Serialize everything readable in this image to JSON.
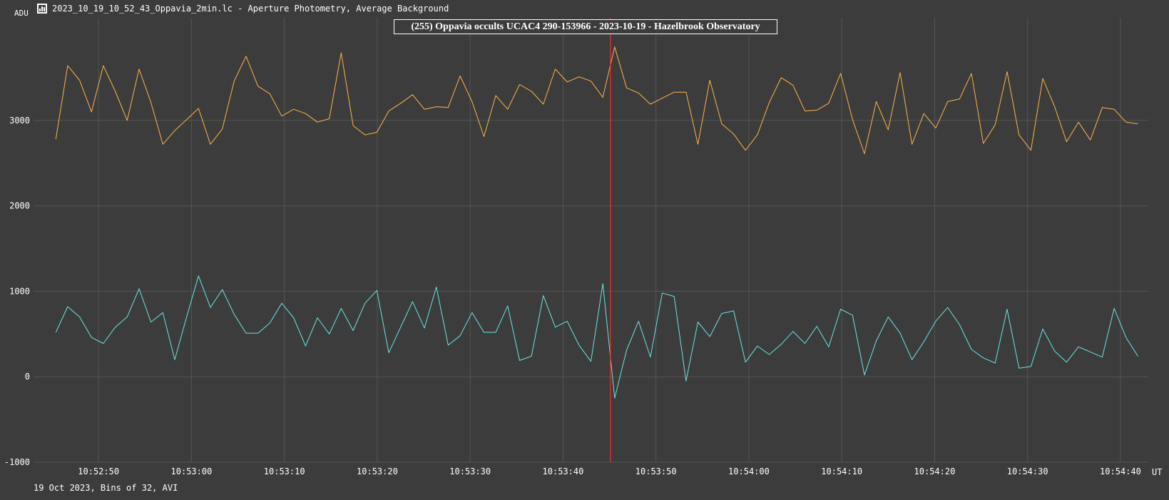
{
  "window": {
    "title": "2023_10_19_10_52_43_Oppavia_2min.lc - Aperture Photometry, Average Background",
    "icon": "lightcurve-chart-icon"
  },
  "chart_data": {
    "type": "line",
    "title": "(255) Oppavia occults UCAC4 290-153966 - 2023-10-19 - Hazelbrook Observatory",
    "ylabel": "ADU",
    "xlabel": "UT",
    "footer": "19 Oct 2023, Bins of 32, AVI",
    "ylim": [
      -1000,
      4200
    ],
    "yticks": [
      -1000,
      0,
      1000,
      2000,
      3000
    ],
    "xticks": [
      "10:52:50",
      "10:53:00",
      "10:53:10",
      "10:53:20",
      "10:53:30",
      "10:53:40",
      "10:53:50",
      "10:54:00",
      "10:54:10",
      "10:54:20",
      "10:54:30",
      "10:54:40"
    ],
    "xlim_seconds": [
      43,
      163
    ],
    "grid": true,
    "marker": {
      "time_seconds": 105.1,
      "color": "#ff2a2a"
    },
    "x_seconds_after": "10:52:00",
    "x_start_seconds": 45.4,
    "x_step_seconds": 1.28,
    "series": [
      {
        "color": "#ffb347",
        "values": [
          2780,
          3640,
          3470,
          3100,
          3640,
          3340,
          3000,
          3600,
          3210,
          2720,
          2880,
          3010,
          3140,
          2720,
          2900,
          3460,
          3750,
          3400,
          3310,
          3050,
          3130,
          3080,
          2980,
          3020,
          3790,
          2940,
          2830,
          2860,
          3110,
          3200,
          3300,
          3130,
          3160,
          3150,
          3520,
          3220,
          2810,
          3290,
          3130,
          3420,
          3340,
          3190,
          3600,
          3450,
          3510,
          3460,
          3270,
          3860,
          3380,
          3320,
          3190,
          3260,
          3330,
          3330,
          2720,
          3470,
          2960,
          2840,
          2650,
          2830,
          3210,
          3500,
          3410,
          3110,
          3120,
          3200,
          3550,
          3010,
          2610,
          3220,
          2890,
          3560,
          2720,
          3080,
          2910,
          3220,
          3250,
          3550,
          2730,
          2950,
          3570,
          2830,
          2650,
          3490,
          3160,
          2750,
          2980,
          2770,
          3150,
          3130,
          2980,
          2960
        ]
      },
      {
        "color": "#66e6e6",
        "values": [
          520,
          820,
          700,
          460,
          390,
          580,
          700,
          1030,
          640,
          750,
          200,
          700,
          1180,
          810,
          1020,
          730,
          510,
          510,
          630,
          860,
          690,
          360,
          690,
          500,
          800,
          540,
          860,
          1010,
          280,
          580,
          880,
          570,
          1050,
          370,
          480,
          750,
          520,
          520,
          830,
          190,
          240,
          950,
          580,
          650,
          370,
          180,
          1090,
          -250,
          310,
          650,
          230,
          980,
          940,
          -50,
          640,
          470,
          740,
          770,
          170,
          360,
          260,
          380,
          530,
          390,
          590,
          350,
          790,
          720,
          20,
          420,
          700,
          510,
          200,
          410,
          650,
          810,
          610,
          320,
          220,
          160,
          790,
          100,
          120,
          560,
          300,
          170,
          350,
          290,
          230,
          800,
          460,
          240
        ]
      }
    ]
  }
}
